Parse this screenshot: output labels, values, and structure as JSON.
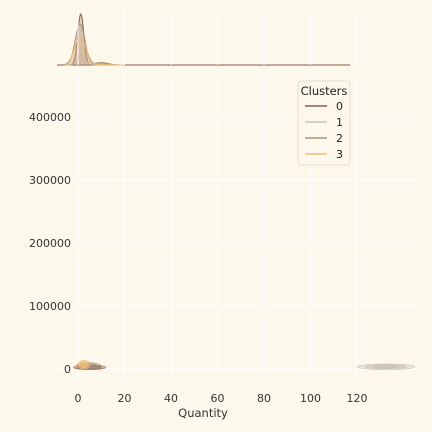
{
  "chart_data": {
    "type": "kde_jointplot",
    "xlabel": "Quantity",
    "ylabel": "",
    "x_ticks": [
      0,
      20,
      40,
      60,
      80,
      100,
      120
    ],
    "y_ticks": [
      0,
      100000,
      200000,
      300000,
      400000
    ],
    "xlim": [
      -10,
      120
    ],
    "ylim": [
      -15000,
      470000
    ],
    "grid": true,
    "legend": {
      "title": "Clusters",
      "placement": "top-right",
      "entries": [
        {
          "label": "0",
          "color": "#8a5a48"
        },
        {
          "label": "1",
          "color": "#c9c1b6"
        },
        {
          "label": "2",
          "color": "#a8917a"
        },
        {
          "label": "3",
          "color": "#edbd7a"
        }
      ]
    },
    "marginal_peaks": [
      {
        "cluster": "0",
        "x": 1.2,
        "peak_relative_height": 1.0
      },
      {
        "cluster": "1",
        "x": 1.5,
        "peak_relative_height": 0.2
      },
      {
        "cluster": "2",
        "x": 0.9,
        "peak_relative_height": 0.8
      },
      {
        "cluster": "3",
        "x": 1.0,
        "peak_relative_height": 0.55
      }
    ],
    "density_regions": [
      {
        "cluster": "0",
        "x_range": [
          -2,
          12
        ],
        "y_range": [
          -1000,
          6000
        ]
      },
      {
        "cluster": "1",
        "x_range": [
          120,
          145
        ],
        "y_range": [
          -1000,
          8000
        ]
      },
      {
        "cluster": "2",
        "x_range": [
          -1,
          10
        ],
        "y_range": [
          -1000,
          10000
        ]
      },
      {
        "cluster": "3",
        "x_range": [
          0,
          5
        ],
        "y_range": [
          0,
          14000
        ]
      }
    ]
  },
  "style": {
    "background": "#fdf8ec",
    "grid_color": "#ffffff",
    "text_color": "#333333"
  }
}
